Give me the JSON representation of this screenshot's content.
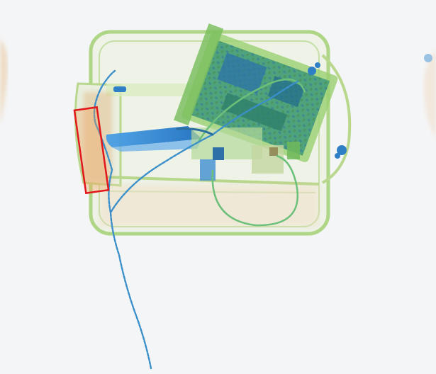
{
  "image": {
    "kind": "x-ray baggage scan",
    "background_color": "#f4f5f6"
  },
  "detections": [
    {
      "label": "",
      "box_color": "#e2161b"
    }
  ],
  "colors": {
    "organic_orange": "#e2a86a",
    "mixed_green": "#8ccc5a",
    "dense_blue": "#2f7fc6",
    "electronics_teal": "#2e8b6e"
  }
}
